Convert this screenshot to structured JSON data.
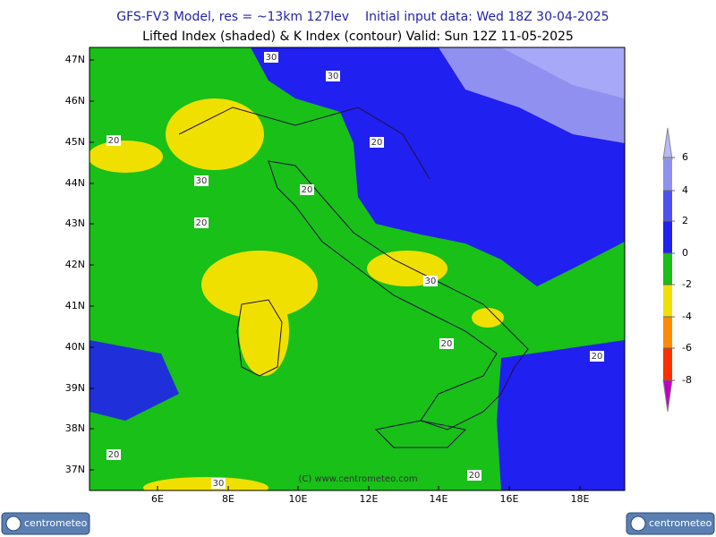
{
  "header": {
    "title_model": "GFS-FV3 Model, res = ~13km 127lev",
    "title_init": "Initial input data: Wed 18Z 30-04-2025",
    "subtitle": "Lifted Index (shaded) & K Index (contour) Valid: Sun 12Z 11-05-2025"
  },
  "map": {
    "lat_labels": [
      "47N",
      "46N",
      "45N",
      "44N",
      "43N",
      "42N",
      "41N",
      "40N",
      "39N",
      "38N",
      "37N"
    ],
    "lon_labels": [
      "6E",
      "8E",
      "10E",
      "12E",
      "14E",
      "16E",
      "18E"
    ],
    "contour_labels": [
      30,
      30,
      20,
      20,
      30,
      20,
      20,
      30,
      20,
      20,
      20,
      30,
      20
    ],
    "copyright": "(C) www.centrometeo.com"
  },
  "colorbar": {
    "labels": [
      6,
      4,
      2,
      0,
      -2,
      -4,
      -6,
      -8
    ]
  },
  "logos": {
    "left": "centrometeo",
    "right": "centrometeo"
  }
}
